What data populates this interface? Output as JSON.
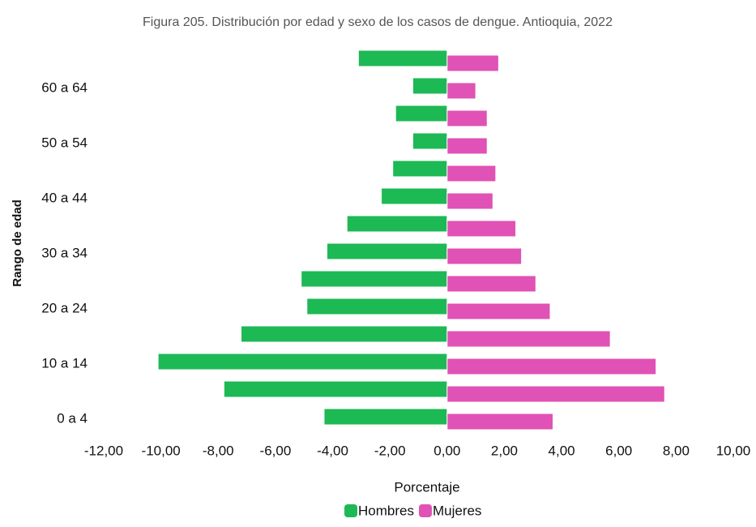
{
  "chart_data": {
    "type": "bar",
    "orientation": "horizontal",
    "title": "Figura 205. Distribución por edad y sexo de los casos de dengue. Antioquia, 2022",
    "xlabel": "Porcentaje",
    "ylabel": "Rango de edad",
    "categories": [
      "0 a 4",
      null,
      "10 a 14",
      null,
      "20 a 24",
      null,
      "30 a 34",
      null,
      "40 a 44",
      null,
      "50 a 54",
      null,
      "60 a 64",
      null
    ],
    "series": [
      {
        "name": "Hombres",
        "color": "#1db954",
        "values": [
          -4.3,
          -7.8,
          -10.1,
          -7.2,
          -4.9,
          -5.1,
          -4.2,
          -3.5,
          -2.3,
          -1.9,
          -1.2,
          -1.8,
          -1.2,
          -3.1
        ]
      },
      {
        "name": "Mujeres",
        "color": "#e052b5",
        "values": [
          3.7,
          7.6,
          7.3,
          5.7,
          3.6,
          3.1,
          2.6,
          2.4,
          1.6,
          1.7,
          1.4,
          1.4,
          1.0,
          1.8
        ]
      }
    ],
    "xlim": [
      -12,
      10
    ],
    "xticks": [
      {
        "value": -12,
        "label": "-12,00"
      },
      {
        "value": -10,
        "label": "-10,00"
      },
      {
        "value": -8,
        "label": "-8,00"
      },
      {
        "value": -6,
        "label": "-6,00"
      },
      {
        "value": -4,
        "label": "-4,00"
      },
      {
        "value": -2,
        "label": "-2,00"
      },
      {
        "value": 0,
        "label": "0,00"
      },
      {
        "value": 2,
        "label": "2,00"
      },
      {
        "value": 4,
        "label": "4,00"
      },
      {
        "value": 6,
        "label": "6,00"
      },
      {
        "value": 8,
        "label": "8,00"
      },
      {
        "value": 10,
        "label": "10,00"
      }
    ],
    "legend": "bottom"
  }
}
